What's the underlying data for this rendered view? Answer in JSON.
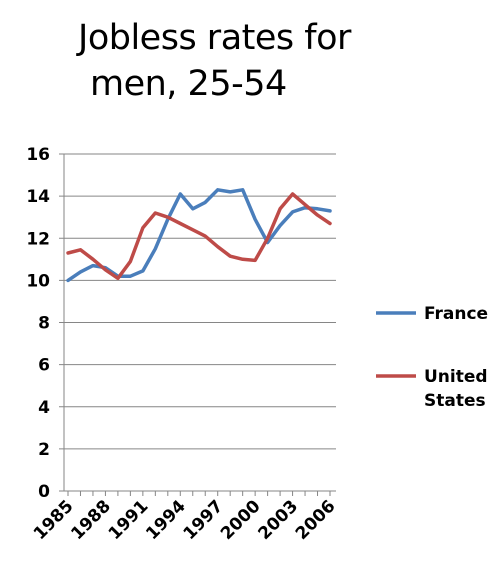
{
  "chart_data": {
    "type": "line",
    "title_lines": [
      "Jobless rates for",
      "men, 25-54"
    ],
    "xlabel": "",
    "ylabel": "",
    "ylim": [
      0,
      16
    ],
    "yticks": [
      0,
      2,
      4,
      6,
      8,
      10,
      12,
      14,
      16
    ],
    "x": [
      1985,
      1986,
      1987,
      1988,
      1989,
      1990,
      1991,
      1992,
      1993,
      1994,
      1995,
      1996,
      1997,
      1998,
      1999,
      2000,
      2001,
      2002,
      2003,
      2004,
      2005,
      2006
    ],
    "xtick_labels": [
      "1985",
      "1988",
      "1991",
      "1994",
      "1997",
      "2000",
      "2003",
      "2006"
    ],
    "grid": true,
    "legend_position": "right",
    "series": [
      {
        "name": "France",
        "color": "#4a7ebb",
        "values": [
          10.0,
          10.4,
          10.7,
          10.6,
          10.2,
          10.2,
          10.45,
          11.5,
          12.9,
          14.1,
          13.4,
          13.7,
          14.3,
          14.2,
          14.3,
          12.9,
          11.8,
          12.6,
          13.25,
          13.45,
          13.4,
          13.3
        ]
      },
      {
        "name": "United States",
        "name_lines": [
          "United",
          "States"
        ],
        "color": "#be4b48",
        "values": [
          11.3,
          11.45,
          11.0,
          10.5,
          10.1,
          10.9,
          12.5,
          13.2,
          13.0,
          12.7,
          12.4,
          12.1,
          11.6,
          11.15,
          11.0,
          10.95,
          12.0,
          13.4,
          14.1,
          13.6,
          13.1,
          12.7
        ]
      }
    ]
  }
}
